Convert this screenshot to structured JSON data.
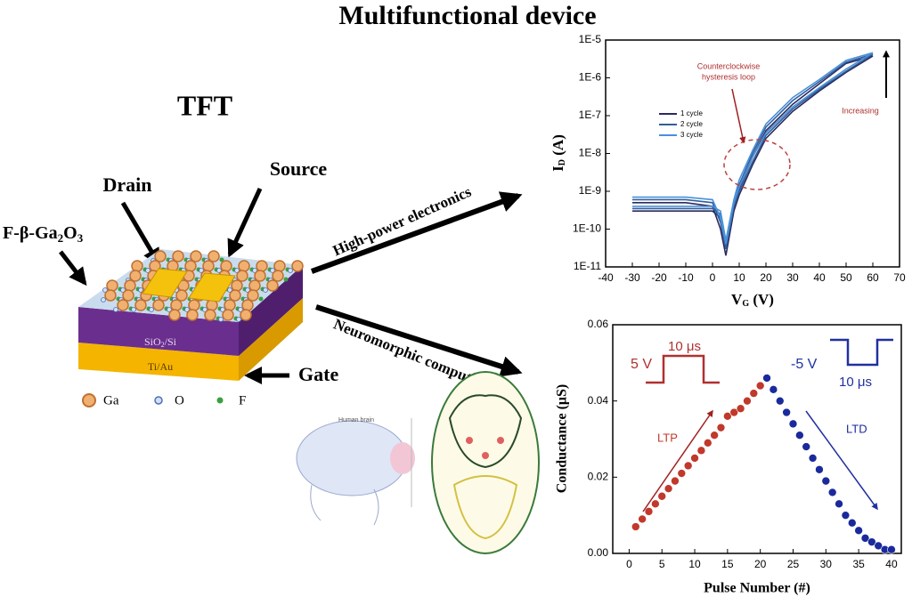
{
  "header": {
    "title": "Multifunctional device"
  },
  "device": {
    "title": "TFT",
    "drain": "Drain",
    "source": "Source",
    "channel_parts": [
      {
        "t": "F-β-Ga"
      },
      {
        "t": "2",
        "sub": true
      },
      {
        "t": "O"
      },
      {
        "t": "3",
        "sub": true
      }
    ],
    "dielectric_parts": [
      {
        "t": "SiO"
      },
      {
        "t": "2",
        "sub": true
      },
      {
        "t": "/Si"
      }
    ],
    "gate_metal": "Ti/Au",
    "gate": "Gate",
    "legend": [
      "Ga",
      "O",
      "F"
    ]
  },
  "routes": {
    "power": "High-power electronics",
    "neuro": "Neuromorphic computing",
    "brain": "Human brain"
  },
  "charts": [
    {
      "type": "line",
      "log_y": true,
      "xlabel_parts": [
        {
          "t": "V"
        },
        {
          "t": "G",
          "sub": true
        },
        {
          "t": " (V)"
        }
      ],
      "ylabel_parts": [
        {
          "t": "I"
        },
        {
          "t": "D",
          "sub": true
        },
        {
          "t": " (A)"
        }
      ],
      "xlim": [
        -40,
        70
      ],
      "ylim": [
        1e-11,
        1e-05
      ],
      "xticks": [
        -40,
        -30,
        -20,
        -10,
        0,
        10,
        20,
        30,
        40,
        50,
        60,
        70
      ],
      "yticks": [
        {
          "value": 1e-11,
          "label": "1E-11"
        },
        {
          "value": 1e-10,
          "label": "1E-10"
        },
        {
          "value": 1e-09,
          "label": "1E-9"
        },
        {
          "value": 1e-08,
          "label": "1E-8"
        },
        {
          "value": 1e-07,
          "label": "1E-7"
        },
        {
          "value": 1e-06,
          "label": "1E-6"
        },
        {
          "value": 1e-05,
          "label": "1E-5"
        }
      ],
      "annotations": [
        "Counterclockwise",
        "hysteresis loop",
        "Increasing"
      ],
      "series": [
        {
          "name": "1 cycle",
          "color": "#2b2b5e",
          "x": [
            -30,
            -20,
            -10,
            0,
            3,
            5,
            8,
            10,
            15,
            20,
            30,
            40,
            50,
            60,
            50,
            40,
            30,
            20,
            15,
            10,
            8,
            5,
            3,
            0,
            -10,
            -20,
            -30
          ],
          "values": [
            5e-10,
            5e-10,
            5e-10,
            4e-10,
            1e-10,
            2e-11,
            3e-10,
            8e-10,
            5e-09,
            2.5e-08,
            1.3e-07,
            4.5e-07,
            1.4e-06,
            3.8e-06,
            2.4e-06,
            7e-07,
            2e-07,
            4e-08,
            8e-09,
            1.2e-09,
            4e-10,
            3e-11,
            2e-10,
            3e-10,
            3e-10,
            3e-10,
            3e-10
          ]
        },
        {
          "name": "2 cycle",
          "color": "#2f5f9e",
          "x": [
            -30,
            -20,
            -10,
            0,
            3,
            5,
            8,
            10,
            15,
            20,
            30,
            40,
            50,
            60,
            50,
            40,
            30,
            20,
            15,
            10,
            8,
            5,
            3,
            0,
            -10,
            -20,
            -30
          ],
          "values": [
            6e-10,
            6e-10,
            6e-10,
            5e-10,
            1.5e-10,
            3e-11,
            4e-10,
            1e-09,
            6e-09,
            3e-08,
            1.5e-07,
            5e-07,
            1.5e-06,
            4.2e-06,
            2.6e-06,
            8e-07,
            2.5e-07,
            5e-08,
            1e-08,
            1.5e-09,
            5e-10,
            4e-11,
            2.5e-10,
            3.5e-10,
            3.5e-10,
            3.5e-10,
            3.5e-10
          ]
        },
        {
          "name": "3 cycle",
          "color": "#4a90d9",
          "x": [
            -30,
            -20,
            -10,
            0,
            3,
            5,
            8,
            10,
            15,
            20,
            30,
            40,
            50,
            60,
            50,
            40,
            30,
            20,
            15,
            10,
            8,
            5,
            3,
            0,
            -10,
            -20,
            -30
          ],
          "values": [
            7e-10,
            7e-10,
            7e-10,
            6e-10,
            2e-10,
            4e-11,
            5e-10,
            1.3e-09,
            8e-09,
            3.5e-08,
            1.7e-07,
            5.5e-07,
            1.7e-06,
            4.6e-06,
            2.9e-06,
            9e-07,
            3e-07,
            6e-08,
            1.2e-08,
            2e-09,
            6e-10,
            5e-11,
            3e-10,
            4e-10,
            4e-10,
            4e-10,
            4e-10
          ]
        }
      ]
    },
    {
      "type": "scatter",
      "xlabel": "Pulse Number (#)",
      "ylabel": "Conductance (μS)",
      "xlim": [
        -2.5,
        41.5
      ],
      "ylim": [
        0,
        0.06
      ],
      "xticks": [
        0,
        5,
        10,
        15,
        20,
        25,
        30,
        35,
        40
      ],
      "yticks": [
        {
          "value": 0,
          "label": "0.00"
        },
        0.02,
        0.04,
        0.06
      ],
      "pulse_labels": [
        "5 V",
        "10 μs",
        "-5 V",
        "10 μs"
      ],
      "series": [
        {
          "name": "LTP",
          "color": "#c0392b",
          "x": [
            1,
            2,
            3,
            4,
            5,
            6,
            7,
            8,
            9,
            10,
            11,
            12,
            13,
            14,
            15,
            16,
            17,
            18,
            19,
            20,
            21
          ],
          "values": [
            0.007,
            0.009,
            0.011,
            0.013,
            0.015,
            0.017,
            0.019,
            0.021,
            0.023,
            0.025,
            0.027,
            0.029,
            0.031,
            0.033,
            0.036,
            0.037,
            0.038,
            0.04,
            0.042,
            0.044,
            0.046
          ]
        },
        {
          "name": "LTD",
          "color": "#1a2a9c",
          "x": [
            21,
            22,
            23,
            24,
            25,
            26,
            27,
            28,
            29,
            30,
            31,
            32,
            33,
            34,
            35,
            36,
            37,
            38,
            39,
            40
          ],
          "values": [
            0.046,
            0.043,
            0.04,
            0.037,
            0.034,
            0.031,
            0.028,
            0.025,
            0.022,
            0.019,
            0.016,
            0.013,
            0.01,
            0.008,
            0.006,
            0.004,
            0.003,
            0.002,
            0.001,
            0.001
          ]
        }
      ]
    }
  ]
}
